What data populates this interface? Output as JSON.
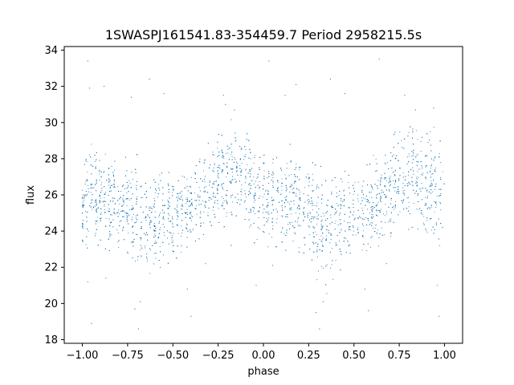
{
  "chart_data": {
    "type": "scatter",
    "title": "1SWASPJ161541.83-354459.7 Period 2958215.5s",
    "xlabel": "phase",
    "ylabel": "flux",
    "xlim": [
      -1.1,
      1.1
    ],
    "ylim": [
      17.8,
      34.2
    ],
    "xticks": [
      -1.0,
      -0.75,
      -0.5,
      -0.25,
      0.0,
      0.25,
      0.5,
      0.75,
      1.0
    ],
    "xtick_labels": [
      "−1.00",
      "−0.75",
      "−0.50",
      "−0.25",
      "0.00",
      "0.25",
      "0.50",
      "0.75",
      "1.00"
    ],
    "yticks": [
      18,
      20,
      22,
      24,
      26,
      28,
      30,
      32,
      34
    ],
    "ytick_labels": [
      "18",
      "20",
      "22",
      "24",
      "26",
      "28",
      "30",
      "32",
      "34"
    ],
    "grid": false,
    "legend": false,
    "marker_color": "#1f77b4",
    "series": [
      {
        "x": [
          -1.0,
          -0.95,
          -0.9,
          -0.85,
          -0.8,
          -0.75,
          -0.7,
          -0.65,
          -0.6,
          -0.55,
          -0.5,
          -0.45,
          -0.4,
          -0.35,
          -0.3,
          -0.25,
          -0.2,
          -0.15,
          -0.1,
          -0.05,
          0.0,
          0.05,
          0.1,
          0.15,
          0.2,
          0.25,
          0.3,
          0.35,
          0.4,
          0.45,
          0.5,
          0.55,
          0.6,
          0.65,
          0.7,
          0.75,
          0.8,
          0.85,
          0.9,
          0.95,
          1.0
        ],
        "y": [
          25.6,
          26.3,
          26.1,
          25.7,
          25.5,
          25.2,
          24.6,
          24.2,
          24.4,
          24.9,
          25.2,
          25.1,
          25.3,
          25.9,
          26.3,
          26.8,
          27.0,
          26.9,
          26.6,
          26.3,
          26.0,
          25.9,
          25.6,
          25.6,
          25.5,
          25.2,
          24.6,
          24.2,
          24.5,
          25.0,
          25.2,
          25.1,
          25.3,
          25.9,
          26.3,
          26.8,
          27.0,
          26.9,
          26.6,
          26.4,
          25.9
        ],
        "spread": [
          2.0,
          2.6,
          2.4,
          2.2,
          2.2,
          2.3,
          2.4,
          2.6,
          2.3,
          2.1,
          2.0,
          1.9,
          1.9,
          1.9,
          2.1,
          2.3,
          2.6,
          2.7,
          2.4,
          2.2,
          2.0,
          2.2,
          2.1,
          2.2,
          2.2,
          2.3,
          2.4,
          2.6,
          2.3,
          2.1,
          2.0,
          1.9,
          1.9,
          1.9,
          2.1,
          2.3,
          2.6,
          2.7,
          2.4,
          2.4,
          2.0
        ]
      }
    ],
    "outliers": [
      {
        "x": -0.97,
        "y": 33.4
      },
      {
        "x": -0.96,
        "y": 31.9
      },
      {
        "x": -0.95,
        "y": 18.9
      },
      {
        "x": -0.97,
        "y": 21.2
      },
      {
        "x": -0.88,
        "y": 32.0
      },
      {
        "x": -0.87,
        "y": 21.4
      },
      {
        "x": -0.73,
        "y": 31.4
      },
      {
        "x": -0.71,
        "y": 19.7
      },
      {
        "x": -0.69,
        "y": 18.6
      },
      {
        "x": -0.68,
        "y": 20.1
      },
      {
        "x": -0.63,
        "y": 32.4
      },
      {
        "x": -0.55,
        "y": 31.6
      },
      {
        "x": -0.42,
        "y": 20.8
      },
      {
        "x": -0.4,
        "y": 19.3
      },
      {
        "x": -0.32,
        "y": 22.2
      },
      {
        "x": -0.22,
        "y": 31.5
      },
      {
        "x": -0.21,
        "y": 31.0
      },
      {
        "x": -0.16,
        "y": 30.7
      },
      {
        "x": -0.04,
        "y": 21.0
      },
      {
        "x": 0.03,
        "y": 33.4
      },
      {
        "x": 0.05,
        "y": 22.1
      },
      {
        "x": 0.12,
        "y": 31.5
      },
      {
        "x": 0.18,
        "y": 32.1
      },
      {
        "x": 0.29,
        "y": 19.5
      },
      {
        "x": 0.31,
        "y": 18.6
      },
      {
        "x": 0.33,
        "y": 20.1
      },
      {
        "x": 0.37,
        "y": 32.4
      },
      {
        "x": 0.45,
        "y": 31.6
      },
      {
        "x": 0.56,
        "y": 20.8
      },
      {
        "x": 0.58,
        "y": 19.6
      },
      {
        "x": 0.64,
        "y": 33.5
      },
      {
        "x": 0.68,
        "y": 22.2
      },
      {
        "x": 0.78,
        "y": 31.5
      },
      {
        "x": 0.84,
        "y": 30.7
      },
      {
        "x": 0.94,
        "y": 30.8
      },
      {
        "x": 0.96,
        "y": 21.0
      },
      {
        "x": 0.97,
        "y": 19.3
      },
      {
        "x": 0.99,
        "y": 24.2
      }
    ]
  }
}
